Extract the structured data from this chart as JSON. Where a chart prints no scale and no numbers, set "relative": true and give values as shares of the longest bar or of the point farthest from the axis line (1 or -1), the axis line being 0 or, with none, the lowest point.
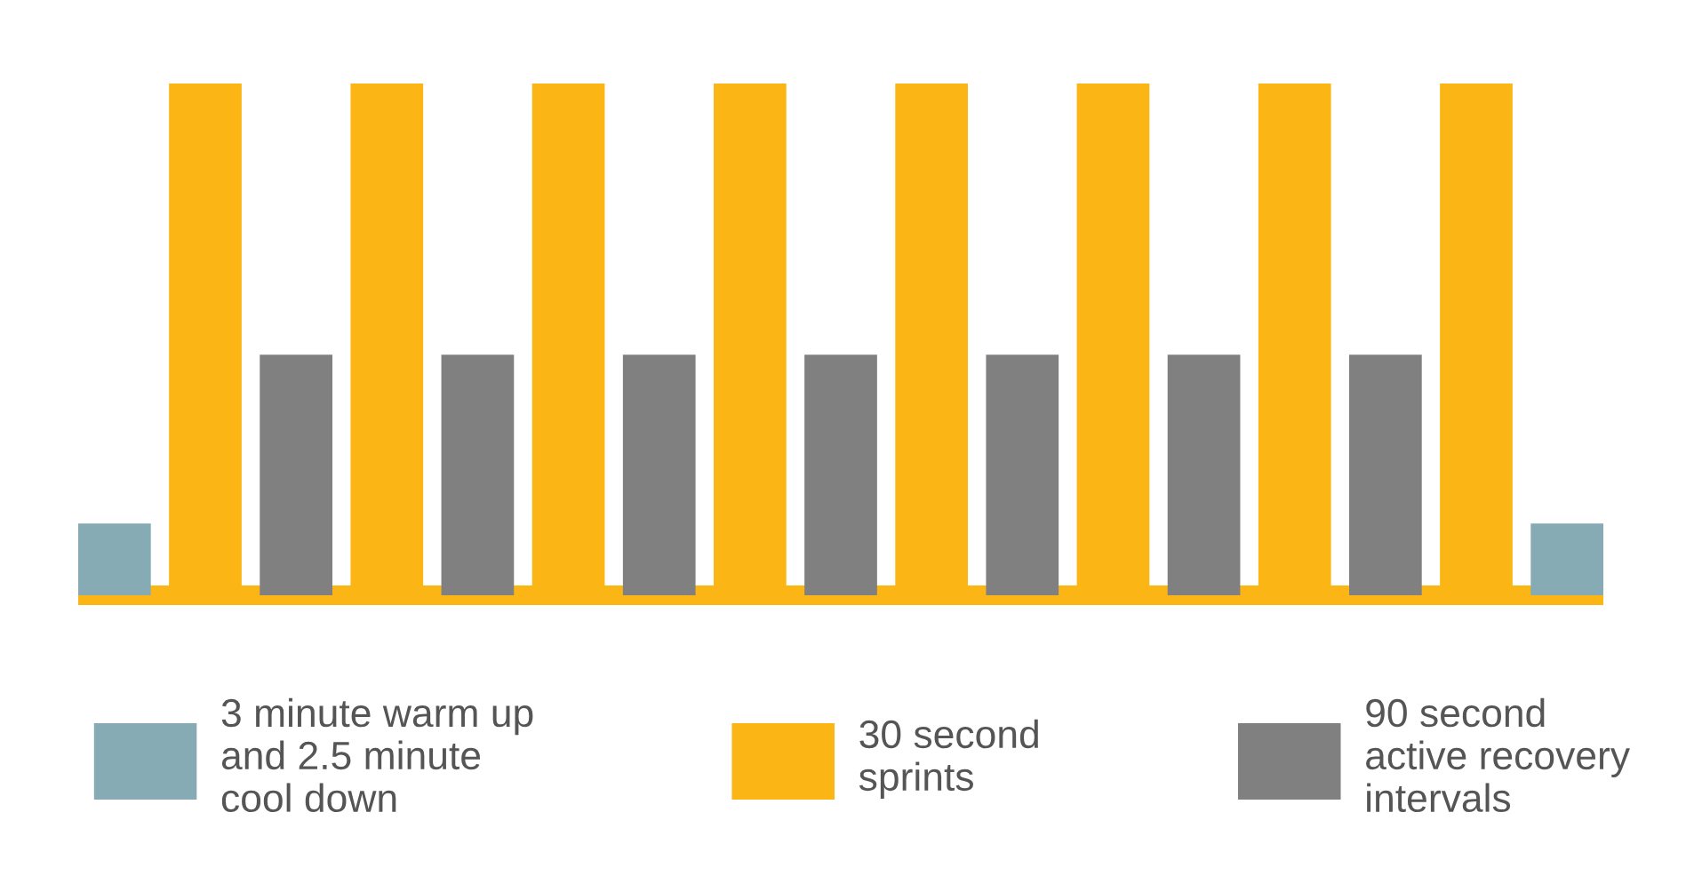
{
  "chart_data": {
    "type": "bar",
    "relative": true,
    "categories": [
      null,
      null,
      null,
      null,
      null,
      null,
      null,
      null,
      null,
      null,
      null,
      null,
      null,
      null,
      null,
      null,
      null
    ],
    "series": [
      {
        "name": "3 minute warm up\nand 2.5 minute\ncool down",
        "color": "#86abb5",
        "values": [
          0.14,
          null,
          null,
          null,
          null,
          null,
          null,
          null,
          null,
          null,
          null,
          null,
          null,
          null,
          null,
          null,
          0.14
        ]
      },
      {
        "name": "30 second\nsprints",
        "color": "#fbb615",
        "values": [
          null,
          1,
          null,
          1,
          null,
          1,
          null,
          1,
          null,
          1,
          null,
          1,
          null,
          1,
          null,
          1,
          null
        ]
      },
      {
        "name": "90 second\nactive recovery\nintervals",
        "color": "#808080",
        "values": [
          null,
          null,
          0.47,
          null,
          0.47,
          null,
          0.47,
          null,
          0.47,
          null,
          0.47,
          null,
          0.47,
          null,
          0.47,
          null,
          null
        ]
      }
    ],
    "stacked": true,
    "legend": "bottom",
    "grid": false
  }
}
